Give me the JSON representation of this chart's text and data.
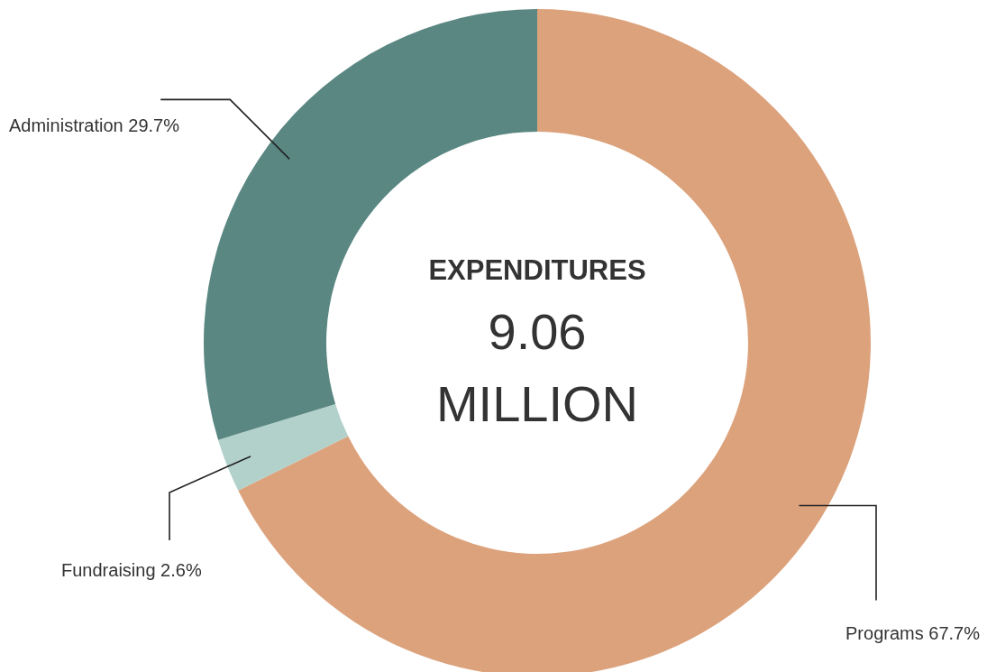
{
  "chart_data": {
    "type": "donut",
    "title": "EXPENDITURES",
    "annotations": [
      "9.06",
      "MILLION"
    ],
    "categories": [
      "Programs",
      "Fundraising",
      "Administration"
    ],
    "values": [
      67.7,
      2.6,
      29.7
    ],
    "colors": [
      "#dca27c",
      "#b2d1cb",
      "#5a8782"
    ],
    "value_labels": [
      "67.7%",
      "2.6%",
      "29.7%"
    ]
  }
}
